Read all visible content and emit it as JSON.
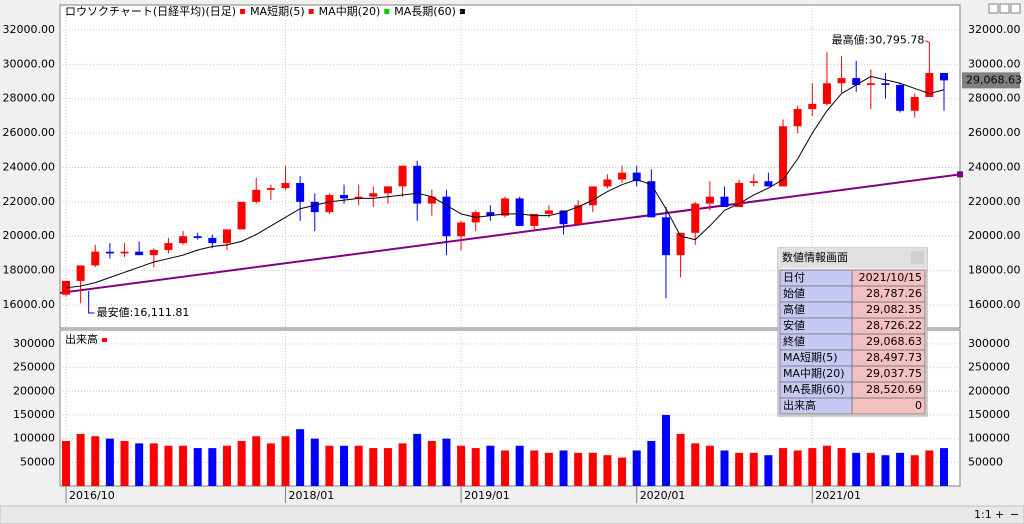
{
  "chart_data": {
    "type": "candlestick",
    "title": "ロウソクチャート(日経平均)(日足)",
    "legend": [
      {
        "name": "MA短期(5)",
        "color": "#ff0000"
      },
      {
        "name": "MA中期(20)",
        "color": "#ff0000"
      },
      {
        "name": "MA長期(60)",
        "color": "#00cc00"
      }
    ],
    "title_color": "#ff0000",
    "legend_end_color": "#000000",
    "categories": [
      "2016/10",
      null,
      null,
      null,
      null,
      null,
      null,
      null,
      null,
      null,
      null,
      null,
      null,
      null,
      null,
      "2018/01",
      null,
      null,
      null,
      null,
      null,
      null,
      null,
      null,
      null,
      null,
      null,
      "2019/01",
      null,
      null,
      null,
      null,
      null,
      null,
      null,
      null,
      null,
      null,
      null,
      "2020/01",
      null,
      null,
      null,
      null,
      null,
      null,
      null,
      null,
      null,
      null,
      null,
      "2021/01",
      null,
      null,
      null,
      null,
      null,
      null,
      null,
      null,
      null
    ],
    "open": [
      16600,
      17400,
      18300,
      19100,
      19000,
      19100,
      18900,
      19200,
      19600,
      20000,
      19900,
      19600,
      20400,
      22000,
      22700,
      22800,
      23100,
      22000,
      21400,
      22400,
      22200,
      22300,
      22500,
      22900,
      24100,
      21900,
      22300,
      20000,
      20800,
      21400,
      21200,
      22200,
      20600,
      21300,
      21500,
      20700,
      21800,
      22900,
      23300,
      23700,
      23200,
      21100,
      18900,
      20200,
      21900,
      22300,
      21700,
      23100,
      23200,
      22900,
      26400,
      27400,
      27700,
      28900,
      29200,
      28800,
      28900,
      28800,
      27300,
      28100,
      29500
    ],
    "high": [
      17400,
      18300,
      19500,
      19600,
      19600,
      19700,
      19300,
      19900,
      20300,
      20200,
      20100,
      20400,
      22000,
      23400,
      23000,
      24100,
      23500,
      22500,
      22500,
      23000,
      23000,
      22900,
      22900,
      24100,
      24400,
      22700,
      22700,
      20900,
      21500,
      21800,
      22300,
      22300,
      21300,
      21800,
      21500,
      22100,
      22900,
      23600,
      24100,
      24100,
      23900,
      21700,
      20200,
      22000,
      23200,
      22900,
      23300,
      23600,
      23700,
      26800,
      27600,
      28900,
      30700,
      30500,
      30200,
      29700,
      29500,
      28900,
      28300,
      30800,
      29500
    ],
    "low": [
      16500,
      16100,
      18200,
      18700,
      18800,
      18900,
      18200,
      19000,
      19500,
      19800,
      19300,
      19200,
      20400,
      21900,
      22100,
      22700,
      20900,
      20300,
      21300,
      21900,
      21800,
      21700,
      21900,
      22300,
      20900,
      21200,
      18900,
      19200,
      20300,
      20900,
      21100,
      20600,
      20400,
      21100,
      20100,
      20600,
      21400,
      22800,
      23100,
      22900,
      21100,
      16400,
      17600,
      19500,
      21500,
      21700,
      21700,
      22900,
      22900,
      22900,
      26000,
      27000,
      27600,
      28300,
      28400,
      27400,
      28000,
      27200,
      26900,
      28100,
      27300
    ],
    "close": [
      17400,
      18300,
      19100,
      19000,
      19100,
      18900,
      19200,
      19600,
      20000,
      19900,
      19600,
      20400,
      22000,
      22700,
      22800,
      23100,
      22000,
      21400,
      22400,
      22200,
      22300,
      22500,
      22900,
      24100,
      21900,
      22300,
      20000,
      20800,
      21400,
      21200,
      22200,
      20600,
      21300,
      21500,
      20700,
      21800,
      22900,
      23300,
      23700,
      23200,
      21100,
      18900,
      20200,
      21900,
      22300,
      21700,
      23100,
      23200,
      22900,
      26400,
      27400,
      27700,
      28900,
      29200,
      28800,
      28900,
      28800,
      27300,
      28100,
      29500,
      29068.63
    ],
    "up_color": "#ff0000",
    "down_color": "#0000ff",
    "ma_long": {
      "color": "#000000",
      "values": [
        17000,
        17100,
        17300,
        17600,
        17900,
        18200,
        18500,
        18700,
        18900,
        19200,
        19400,
        19500,
        19700,
        20100,
        20600,
        21100,
        21600,
        21800,
        22000,
        22100,
        22200,
        22200,
        22300,
        22400,
        22500,
        22300,
        21800,
        21300,
        21100,
        21200,
        21300,
        21300,
        21200,
        21200,
        21400,
        21700,
        22100,
        22600,
        23000,
        23300,
        23000,
        21600,
        20000,
        19800,
        20600,
        21500,
        21900,
        22400,
        22800,
        23300,
        24500,
        26000,
        27300,
        28300,
        28800,
        29300,
        29100,
        28900,
        28600,
        28300,
        28520.69
      ]
    },
    "ylim": [
      14660,
      33280
    ],
    "yticks": [
      {
        "value": 16000,
        "label": "16000.00"
      },
      {
        "value": 18000,
        "label": "18000.00"
      },
      {
        "value": 20000,
        "label": "20000.00"
      },
      {
        "value": 22000,
        "label": "22000.00"
      },
      {
        "value": 24000,
        "label": "24000.00"
      },
      {
        "value": 26000,
        "label": "26000.00"
      },
      {
        "value": 28000,
        "label": "28000.00"
      },
      {
        "value": 30000,
        "label": "30000.00"
      },
      {
        "value": 32000,
        "label": "32000.00"
      }
    ],
    "grid": true,
    "trendline": {
      "start": 16700,
      "end": 23600,
      "color": "#800080"
    },
    "high_note": {
      "value": 30795.78,
      "label": "最高値:30,795.78",
      "color": "#ff0000"
    },
    "low_note": {
      "value": 16111.81,
      "label": "最安値:16,111.81",
      "color": "#0000ff"
    },
    "last_price": {
      "value": 29068.63,
      "label": "29,068.63"
    },
    "volume": {
      "title": "出来高",
      "color": "#ff0000",
      "values": [
        95000,
        110000,
        105000,
        100000,
        95000,
        90000,
        90000,
        85000,
        85000,
        80000,
        80000,
        85000,
        95000,
        105000,
        90000,
        105000,
        120000,
        100000,
        85000,
        85000,
        85000,
        80000,
        80000,
        90000,
        110000,
        95000,
        100000,
        85000,
        80000,
        85000,
        75000,
        85000,
        75000,
        70000,
        75000,
        70000,
        70000,
        65000,
        60000,
        75000,
        95000,
        150000,
        110000,
        90000,
        85000,
        75000,
        70000,
        70000,
        65000,
        80000,
        75000,
        80000,
        85000,
        80000,
        70000,
        70000,
        65000,
        70000,
        65000,
        75000,
        80000
      ],
      "ylim": [
        0,
        323000
      ],
      "yticks": [
        50000,
        100000,
        150000,
        200000,
        250000,
        300000
      ]
    }
  },
  "info_panel": {
    "title": "数値情報画面",
    "rows": [
      [
        "日付",
        "2021/10/15"
      ],
      [
        "始値",
        "28,787.26"
      ],
      [
        "高値",
        "29,082.35"
      ],
      [
        "安値",
        "28,726.22"
      ],
      [
        "終値",
        "29,068.63"
      ],
      [
        "MA短期(5)",
        "28,497.73"
      ],
      [
        "MA中期(20)",
        "29,037.75"
      ],
      [
        "MA長期(60)",
        "28,520.69"
      ],
      [
        "出来高",
        "0"
      ]
    ]
  },
  "toolbar": {
    "zoom": "1:1"
  }
}
